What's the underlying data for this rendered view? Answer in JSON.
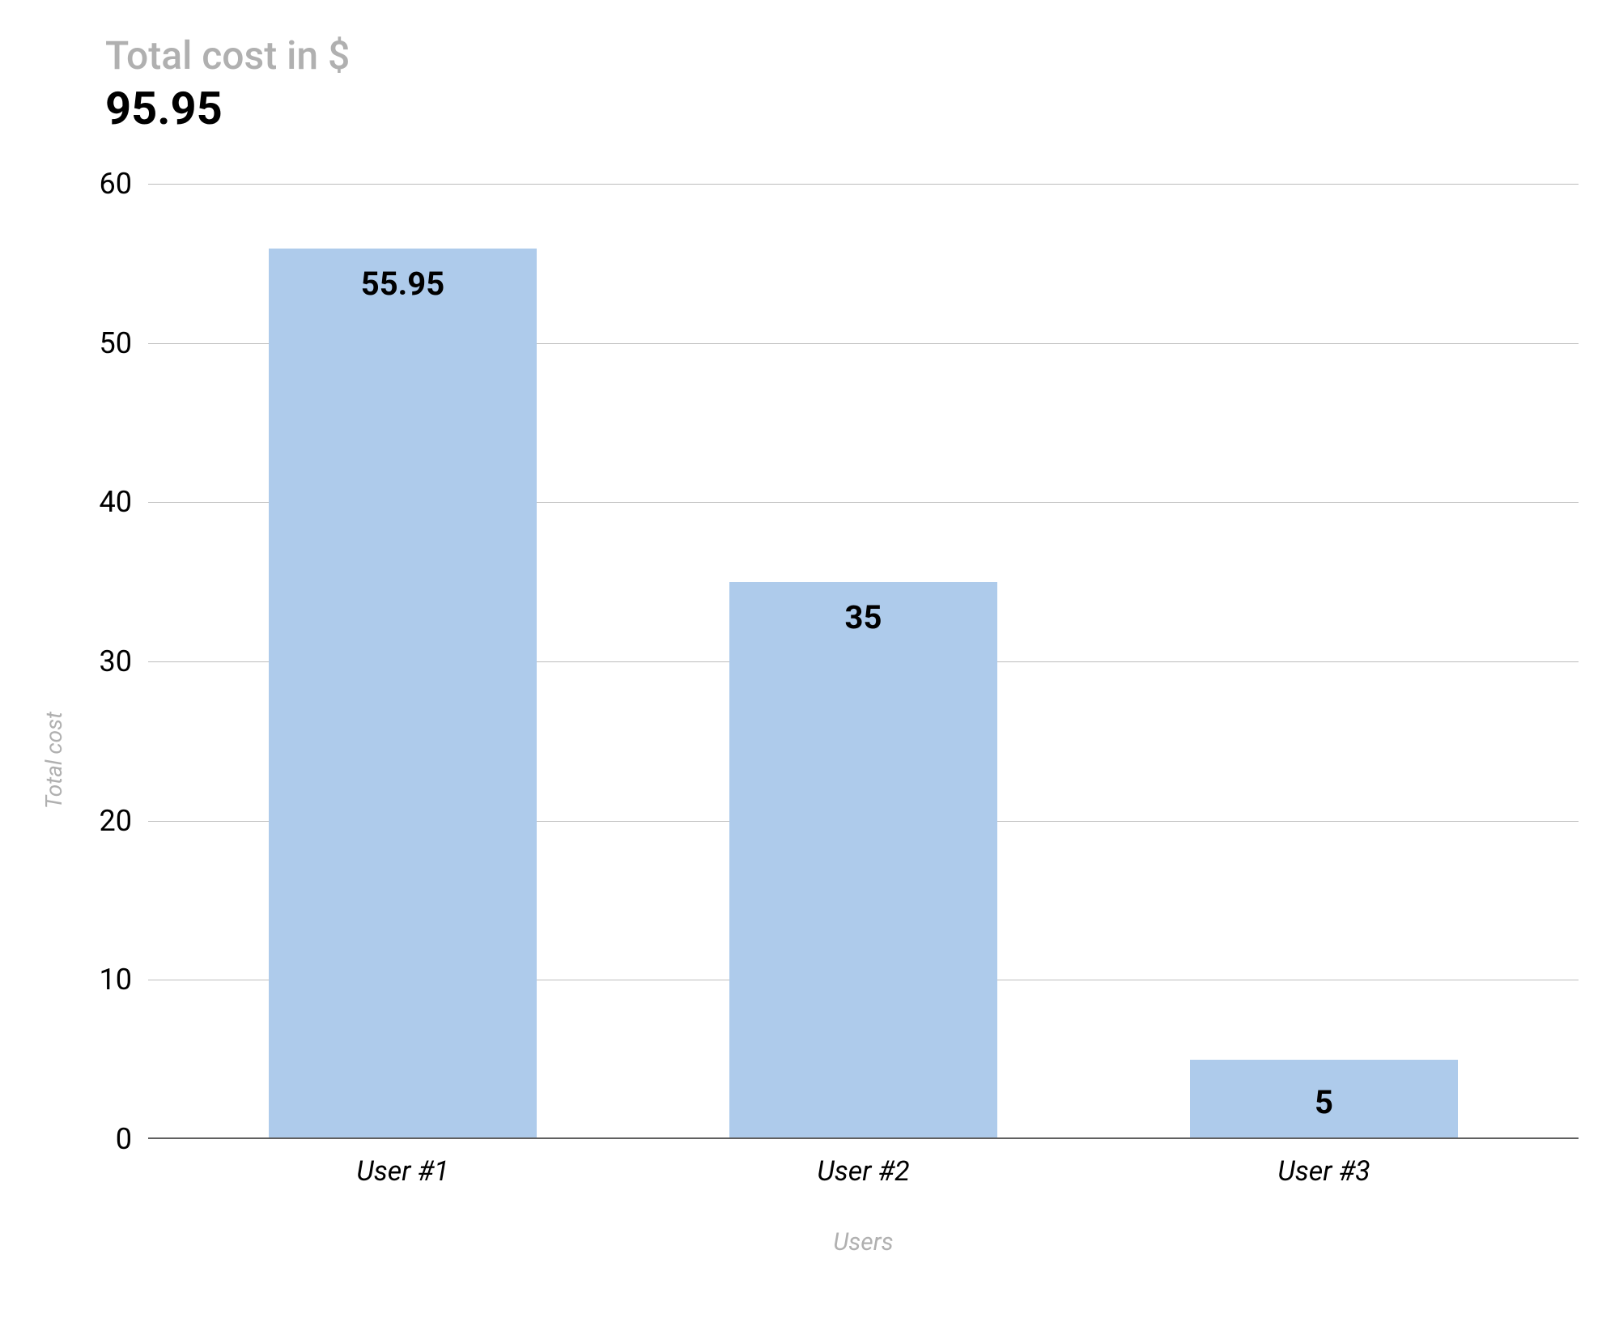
{
  "chart": {
    "type": "bar",
    "title": "Total cost in $",
    "total_value": "95.95",
    "y_axis_label": "Total cost",
    "x_axis_label": "Users",
    "ylim": [
      0,
      60
    ],
    "y_ticks": [
      0,
      10,
      20,
      30,
      40,
      50,
      60
    ],
    "categories": [
      "User #1",
      "User #2",
      "User #3"
    ],
    "values": [
      55.95,
      35,
      5
    ],
    "value_labels": [
      "55.95",
      "35",
      "5"
    ],
    "bar_color": "#aecbeb",
    "background_color": "#ffffff",
    "grid_color": "#bdbdbd",
    "baseline_color": "#606060",
    "title_color": "#b0b0b0",
    "total_value_color": "#000000",
    "axis_label_color": "#b0b0b0",
    "tick_label_color": "#000000",
    "bar_label_color": "#000000",
    "title_fontsize": 48,
    "total_value_fontsize": 56,
    "tick_fontsize": 36,
    "x_tick_fontsize": 34,
    "axis_label_fontsize": 28,
    "bar_label_fontsize": 40,
    "bar_width_ratio": 0.58,
    "label_inside_threshold": 10
  }
}
